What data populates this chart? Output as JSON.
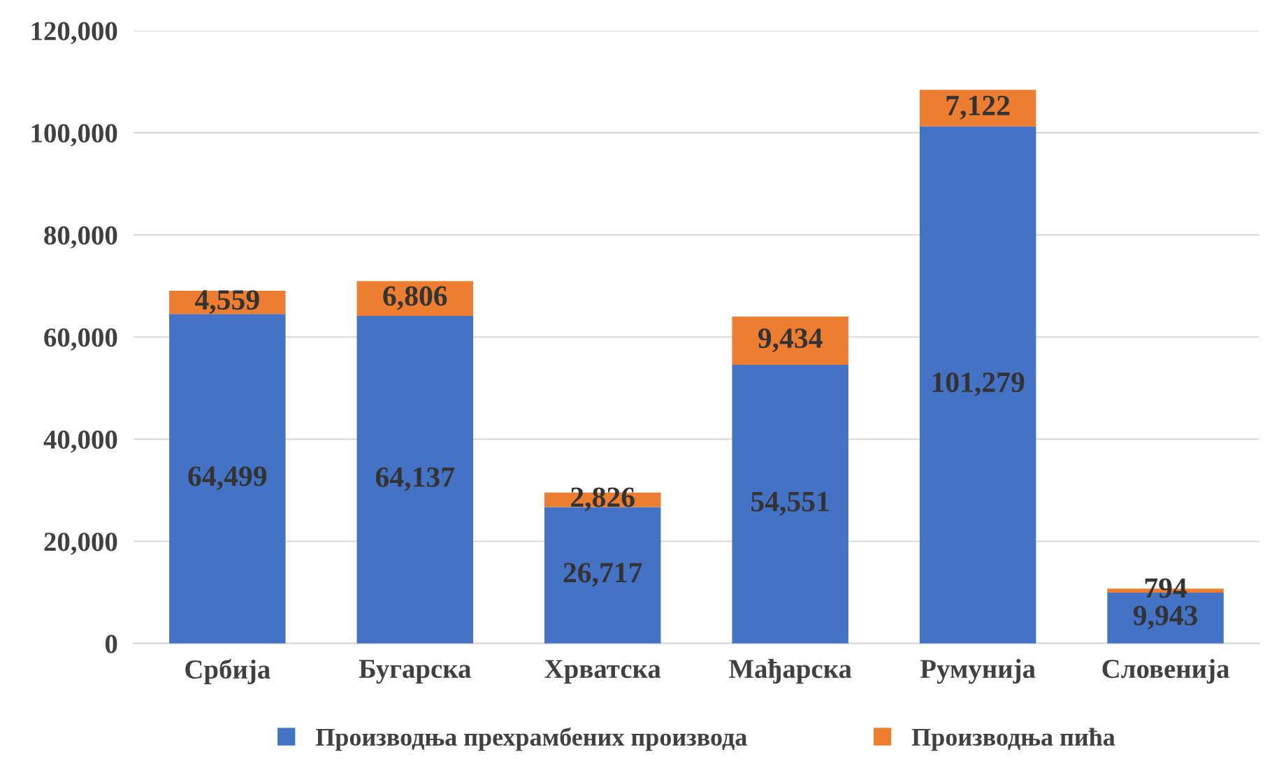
{
  "chart_data": {
    "type": "bar",
    "stacked": true,
    "categories": [
      "Србија",
      "Бугарска",
      "Хрватска",
      "Мађарска",
      "Румунија",
      "Словенија"
    ],
    "series": [
      {
        "name": "Производња прехрамбених производа",
        "color": "#4472c4",
        "values": [
          64499,
          64137,
          26717,
          54551,
          101279,
          9943
        ],
        "value_labels": [
          "64,499",
          "64,137",
          "26,717",
          "54,551",
          "101,279",
          "9,943"
        ]
      },
      {
        "name": "Производња пића",
        "color": "#ed7d31",
        "values": [
          4559,
          6806,
          2826,
          9434,
          7122,
          794
        ],
        "value_labels": [
          "4,559",
          "6,806",
          "2,826",
          "9,434",
          "7,122",
          "794"
        ]
      }
    ],
    "ylim": [
      0,
      120000
    ],
    "yticks": [
      {
        "value": 0,
        "label": "0"
      },
      {
        "value": 20000,
        "label": "20,000"
      },
      {
        "value": 40000,
        "label": "40,000"
      },
      {
        "value": 60000,
        "label": "60,000"
      },
      {
        "value": 80000,
        "label": "80,000"
      },
      {
        "value": 100000,
        "label": "100,000"
      },
      {
        "value": 120000,
        "label": "120,000"
      }
    ],
    "grid": "y",
    "legend": "bottom"
  }
}
